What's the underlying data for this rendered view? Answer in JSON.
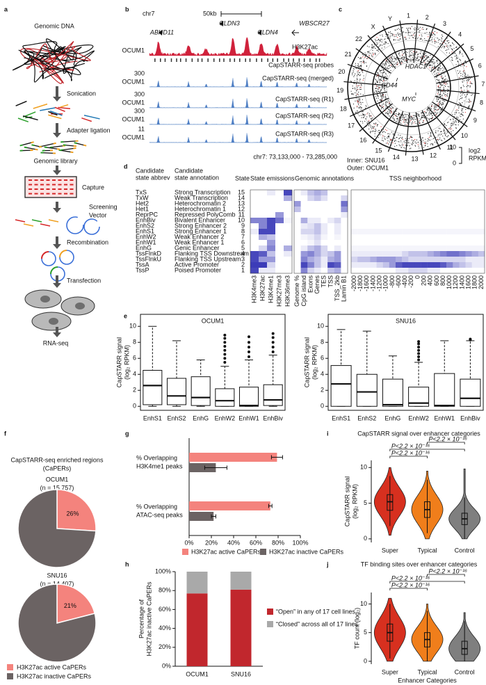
{
  "panel_labels": [
    "a",
    "b",
    "c",
    "d",
    "e",
    "f",
    "g",
    "h",
    "i",
    "j"
  ],
  "workflow": {
    "genomic_dna": "Genomic DNA",
    "sonication": "Sonication",
    "adapter": "Adapter ligation",
    "library": "Genomic library",
    "capture": "Capture",
    "vector": [
      "Screening",
      "Vector"
    ],
    "recombination": "Recombination",
    "transfection": "Transfection",
    "rnaseq": "RNA-seq"
  },
  "browser": {
    "chrom": "chr7",
    "scale": "50kb",
    "genes": [
      "ABHD11",
      "CLDN3",
      "CLDN4",
      "WBSCR27"
    ],
    "cell": "OCUM1",
    "tracks": [
      {
        "name": "H3K27ac"
      },
      {
        "name": "CapSTARR-seq probes"
      },
      {
        "name": "CapSTARR-seq (merged)",
        "scale": 300
      },
      {
        "name": "CapSTARR-seq (R1)",
        "scale": 300
      },
      {
        "name": "CapSTARR-seq (R2)",
        "scale": 300
      },
      {
        "name": "CapSTARR-seq (R3)",
        "scale": 11
      }
    ],
    "coords": "chr7: 73,133,000 - 73,285,000"
  },
  "circos": {
    "chromosomes": [
      "1",
      "2",
      "3",
      "4",
      "5",
      "6",
      "7",
      "8",
      "9",
      "10",
      "11",
      "12",
      "13",
      "14",
      "15",
      "16",
      "17",
      "18",
      "19",
      "20",
      "21",
      "22",
      "X",
      "Y"
    ],
    "genes": [
      "HDAC1",
      "CD44",
      "MYC"
    ],
    "inner": "Inner: SNU16",
    "outer": "Outer: OCUM1",
    "scale_ticks": [
      10,
      0
    ],
    "scale_label": [
      "log2",
      "RPKM"
    ]
  },
  "states": {
    "headers": {
      "abbrev": [
        "Candidate",
        "state abbrev"
      ],
      "annotation": [
        "Candidate",
        "state annotation"
      ],
      "state": "State",
      "emissions": "State emissions",
      "genomic": "Genomic annotations",
      "tss": "TSS neighborhood"
    },
    "abbrev": [
      "TxS",
      "TxW",
      "Het2",
      "Het1",
      "ReprPC",
      "EnhBiv",
      "EnhS2",
      "EnhS1",
      "EnhW2",
      "EnhW1",
      "EnhG",
      "TssFlnkD",
      "TssFlnkU",
      "TssA",
      "TssP"
    ],
    "annotation": [
      "Strong Transcription",
      "Weak Transcription",
      "Heterochromatin 2",
      "Heterochromatin 1",
      "Repressed PolyComb",
      "Bivalent Enhancer",
      "Strong Enhancer 2",
      "Strong Enhancer 1",
      "Weak Enhancer 2",
      "Weak Enhancer 1",
      "Genic Enhancer",
      "Flanking TSS Downstream",
      "Flanking TSS Upstream",
      "Active Promoter",
      "Poised Promoter"
    ],
    "state": [
      15,
      14,
      13,
      12,
      11,
      10,
      9,
      8,
      7,
      6,
      5,
      4,
      3,
      2,
      1
    ],
    "emission_marks": [
      "H3K4me3",
      "H3K27ac",
      "H3K4me1",
      "H3K27me3",
      "H3K36me3"
    ],
    "emissions": [
      [
        0,
        0,
        0.1,
        0,
        0.9
      ],
      [
        0,
        0,
        0,
        0,
        0.4
      ],
      [
        0,
        0,
        0,
        0,
        0
      ],
      [
        0,
        0,
        0,
        0,
        0
      ],
      [
        0,
        0,
        0,
        0.5,
        0
      ],
      [
        0.6,
        0.6,
        0.9,
        0.7,
        0.05
      ],
      [
        0,
        0.6,
        0.9,
        0,
        0
      ],
      [
        0.1,
        0.9,
        0.9,
        0,
        0
      ],
      [
        0,
        0.4,
        0.3,
        0,
        0
      ],
      [
        0,
        0,
        0.5,
        0,
        0
      ],
      [
        0,
        0.2,
        0.6,
        0,
        0.4
      ],
      [
        0.9,
        0.8,
        0.3,
        0,
        0.1
      ],
      [
        0.9,
        0.5,
        0.5,
        0,
        0
      ],
      [
        0.95,
        0.95,
        0.2,
        0,
        0
      ],
      [
        0.9,
        0.1,
        0.1,
        0,
        0
      ]
    ],
    "genomic_cols": [
      "Genome %",
      "CpG island",
      "Exons",
      "Genes",
      "TES",
      "TSS",
      "TSS_2kb",
      "Lamin B1"
    ],
    "genomic": [
      [
        0,
        0.1,
        0.3,
        0.4,
        0.3,
        0,
        0,
        0
      ],
      [
        0,
        0,
        0.2,
        0.3,
        0.15,
        0,
        0,
        0.2
      ],
      [
        0.5,
        0,
        0,
        0,
        0,
        0,
        0,
        0.7
      ],
      [
        0.3,
        0,
        0,
        0,
        0,
        0,
        0,
        0.5
      ],
      [
        0,
        0,
        0,
        0,
        0,
        0,
        0,
        0.1
      ],
      [
        0,
        0.4,
        0.1,
        0.1,
        0,
        0.1,
        0.2,
        0
      ],
      [
        0,
        0.1,
        0.15,
        0.3,
        0.1,
        0,
        0.1,
        0
      ],
      [
        0,
        0.2,
        0.2,
        0.3,
        0.1,
        0,
        0.1,
        0
      ],
      [
        0,
        0.05,
        0.1,
        0.2,
        0.05,
        0,
        0.05,
        0
      ],
      [
        0,
        0,
        0.05,
        0.15,
        0,
        0,
        0,
        0
      ],
      [
        0,
        0.1,
        0.3,
        0.4,
        0.2,
        0,
        0.1,
        0
      ],
      [
        0,
        0.5,
        0.6,
        0.4,
        0.2,
        0.3,
        0.5,
        0
      ],
      [
        0,
        0.6,
        0.4,
        0.3,
        0.1,
        0.4,
        0.5,
        0
      ],
      [
        0,
        0.9,
        0.6,
        0.3,
        0.1,
        0.9,
        0.8,
        0
      ],
      [
        0,
        0.6,
        0.2,
        0.1,
        0,
        0.3,
        0.4,
        0
      ]
    ],
    "tss_positions": [
      -2000,
      -1800,
      -1600,
      -1400,
      -1200,
      -1000,
      -800,
      -600,
      -400,
      -200,
      0,
      200,
      400,
      600,
      800,
      1000,
      1200,
      1400,
      1600,
      1800,
      2000
    ],
    "tss": [
      [
        0,
        0,
        0,
        0,
        0,
        0,
        0,
        0,
        0,
        0,
        0,
        0,
        0,
        0,
        0,
        0,
        0,
        0,
        0,
        0,
        0
      ],
      [
        0,
        0,
        0,
        0,
        0,
        0,
        0,
        0,
        0,
        0,
        0,
        0,
        0,
        0,
        0,
        0,
        0,
        0,
        0,
        0,
        0
      ],
      [
        0,
        0,
        0,
        0,
        0,
        0,
        0,
        0,
        0,
        0,
        0,
        0,
        0,
        0,
        0,
        0,
        0,
        0,
        0,
        0,
        0
      ],
      [
        0,
        0,
        0,
        0,
        0,
        0,
        0,
        0,
        0,
        0,
        0,
        0,
        0,
        0,
        0,
        0,
        0,
        0,
        0,
        0,
        0
      ],
      [
        0,
        0,
        0,
        0,
        0,
        0,
        0,
        0,
        0,
        0,
        0,
        0,
        0,
        0,
        0,
        0,
        0,
        0,
        0,
        0,
        0
      ],
      [
        0,
        0,
        0,
        0,
        0,
        0,
        0,
        0,
        0,
        0,
        0,
        0,
        0,
        0,
        0,
        0,
        0,
        0,
        0,
        0,
        0
      ],
      [
        0,
        0,
        0,
        0,
        0,
        0,
        0,
        0,
        0,
        0,
        0,
        0,
        0,
        0,
        0,
        0,
        0,
        0,
        0,
        0,
        0
      ],
      [
        0.05,
        0.05,
        0.05,
        0.05,
        0.05,
        0.05,
        0.05,
        0.05,
        0.05,
        0.05,
        0.05,
        0.05,
        0.05,
        0.05,
        0.05,
        0.05,
        0.05,
        0.05,
        0.05,
        0.05,
        0.05
      ],
      [
        0,
        0,
        0,
        0,
        0,
        0,
        0,
        0,
        0,
        0,
        0,
        0,
        0,
        0,
        0,
        0,
        0,
        0,
        0,
        0,
        0
      ],
      [
        0,
        0,
        0,
        0,
        0,
        0,
        0,
        0,
        0,
        0,
        0,
        0,
        0,
        0,
        0,
        0,
        0,
        0,
        0,
        0,
        0
      ],
      [
        0.05,
        0.05,
        0.05,
        0.05,
        0.05,
        0.05,
        0.05,
        0.05,
        0.05,
        0.05,
        0.05,
        0.05,
        0.05,
        0.05,
        0.05,
        0.05,
        0.05,
        0.05,
        0.05,
        0.05,
        0.05
      ],
      [
        0.1,
        0.1,
        0.1,
        0.1,
        0.1,
        0.1,
        0.1,
        0.1,
        0.2,
        0.3,
        0.3,
        0.3,
        0.4,
        0.5,
        0.6,
        0.7,
        0.7,
        0.6,
        0.5,
        0.4,
        0.3
      ],
      [
        0.2,
        0.3,
        0.3,
        0.4,
        0.5,
        0.5,
        0.5,
        0.4,
        0.3,
        0.2,
        0.2,
        0.2,
        0.2,
        0.2,
        0.2,
        0.2,
        0.2,
        0.2,
        0.1,
        0.1,
        0.1
      ],
      [
        0.1,
        0.1,
        0.1,
        0.1,
        0.2,
        0.3,
        0.5,
        0.8,
        0.9,
        0.9,
        0.9,
        0.9,
        0.9,
        0.9,
        0.8,
        0.6,
        0.4,
        0.3,
        0.2,
        0.1,
        0.1
      ],
      [
        0,
        0,
        0,
        0,
        0,
        0,
        0,
        0.1,
        0.1,
        0.2,
        0.2,
        0.2,
        0.1,
        0.1,
        0,
        0,
        0,
        0,
        0,
        0,
        0
      ]
    ]
  },
  "chart_data": [
    {
      "type": "box",
      "title": "OCUM1",
      "y_label": [
        "CapSTARR signal",
        "(log₂ RPKM)"
      ],
      "categories": [
        "EnhS1",
        "EnhS2",
        "EnhG",
        "EnhW2",
        "EnhW1",
        "EnhBiv"
      ],
      "low": [
        0,
        0,
        0,
        0,
        0,
        0
      ],
      "q1": [
        0.2,
        0.2,
        0.1,
        0,
        0,
        0.1
      ],
      "median": [
        2.6,
        1.3,
        1.1,
        0.7,
        0.1,
        0.8
      ],
      "q3": [
        4.5,
        3.5,
        3.7,
        2.2,
        2.4,
        2.7
      ],
      "high": [
        10,
        8.2,
        5.8,
        5,
        5.8,
        6.4
      ],
      "outliers": [
        [],
        [],
        [],
        [
          5.5,
          6,
          6.5,
          7,
          7.5,
          8,
          8.5,
          8.9
        ],
        [
          6.2,
          6.8,
          7.4,
          8,
          8.7
        ],
        [
          6.8,
          7.4,
          8,
          8.6,
          9.1
        ]
      ],
      "ylim": [
        -0.5,
        11.5
      ],
      "yticks": [
        0,
        2,
        4,
        6,
        8,
        10
      ],
      "color": "#ffffff"
    },
    {
      "type": "box",
      "title": "SNU16",
      "y_label": [
        "CapSTARR signal",
        "(log₂ RPKM)"
      ],
      "categories": [
        "EnhS1",
        "EnhS2",
        "EnhG",
        "EnhW2",
        "EnhW1",
        "EnhBiv"
      ],
      "low": [
        0,
        0,
        0,
        0,
        0,
        0
      ],
      "q1": [
        0,
        0,
        0,
        0,
        0,
        0
      ],
      "median": [
        2.8,
        1.8,
        0.2,
        0.4,
        0.1,
        1
      ],
      "q3": [
        5.1,
        4,
        3.4,
        2.4,
        4.1,
        3.4
      ],
      "high": [
        9.6,
        9.4,
        6.3,
        5.5,
        8.2,
        8.2
      ],
      "outliers": [
        [],
        [],
        [],
        [
          5.8,
          6.2,
          6.6,
          7,
          7.4,
          7.8,
          8.1
        ],
        [],
        [
          8.3,
          8.4
        ]
      ],
      "ylim": [
        -0.5,
        11.5
      ],
      "yticks": [
        0,
        2,
        4,
        6,
        8,
        10
      ],
      "color": "#ffffff"
    },
    {
      "type": "pie",
      "panel_title": [
        "CapSTARR-seq enriched regions",
        "(CaPERs)"
      ],
      "title": "OCUM1",
      "subtitle": "(n = 15,757)",
      "categories": [
        "H3K27ac active CaPERs",
        "H3K27ac inactive CaPERs"
      ],
      "values": [
        26,
        74
      ],
      "value_labels": [
        "26%",
        null
      ],
      "colors": [
        "#f4837d",
        "#6b6363"
      ]
    },
    {
      "type": "pie",
      "title": "SNU16",
      "subtitle": "(n = 14,407)",
      "categories": [
        "H3K27ac active CaPERs",
        "H3K27ac inactive CaPERs"
      ],
      "values": [
        21,
        79
      ],
      "value_labels": [
        "21%",
        null
      ],
      "colors": [
        "#f4837d",
        "#6b6363"
      ]
    },
    {
      "type": "hbar",
      "categories": [
        [
          "% Overlapping",
          "H3K4me1 peaks"
        ],
        [
          "% Overlapping",
          "ATAC-seq peaks"
        ]
      ],
      "series": [
        {
          "name": "H3K27ac active CaPERs",
          "color": "#f4837d",
          "values": [
            79,
            73
          ],
          "errors": [
            5,
            1.5
          ]
        },
        {
          "name": "H3K27ac inactive CaPERs",
          "color": "#6b6363",
          "values": [
            24,
            22
          ],
          "errors": [
            10,
            2
          ]
        }
      ],
      "xlim": [
        0,
        100
      ],
      "xticks": [
        {
          "value": 0,
          "label": "0%"
        },
        {
          "value": 20,
          "label": "20%"
        },
        {
          "value": 40,
          "label": "40%"
        },
        {
          "value": 60,
          "label": "60%"
        },
        {
          "value": 80,
          "label": "80%"
        },
        {
          "value": 100,
          "label": "100%"
        }
      ]
    },
    {
      "type": "stacked_bar",
      "y_label": [
        "Percentage of",
        "H3K27ac inactive CaPERs"
      ],
      "categories": [
        "OCUM1",
        "SNU16"
      ],
      "series": [
        {
          "name": "“Open” in any of 17 cell lines",
          "color": "#c1272d",
          "values": [
            77,
            81
          ]
        },
        {
          "name": "“Closed” across all of 17 lines",
          "color": "#a9a9a9",
          "values": [
            23,
            19
          ]
        }
      ],
      "ylim": [
        0,
        100
      ],
      "yticks": [
        {
          "value": 0,
          "label": "0%"
        },
        {
          "value": 20,
          "label": "20%"
        },
        {
          "value": 40,
          "label": "40%"
        },
        {
          "value": 60,
          "label": "60%"
        },
        {
          "value": 80,
          "label": "80%"
        },
        {
          "value": 100,
          "label": "100%"
        }
      ]
    },
    {
      "type": "violin",
      "title": "CapSTARR signal over enhancer categories",
      "y_label": [
        "CapSTARR signal",
        "(log₂ RPKM)"
      ],
      "categories": [
        "Super",
        "Typical",
        "Control"
      ],
      "colors": [
        "#d7301f",
        "#f07e1b",
        "#7f7f7f"
      ],
      "min": [
        0.5,
        0,
        0
      ],
      "low": [
        1.8,
        0.8,
        0
      ],
      "q1": [
        4,
        3,
        2
      ],
      "median": [
        5.2,
        4.1,
        2.8
      ],
      "q3": [
        6.2,
        5.2,
        3.6
      ],
      "high": [
        8.8,
        8.3,
        5.8
      ],
      "max": [
        10,
        9.5,
        9.8
      ],
      "comparisons": [
        "P<2.2 × 10⁻¹⁶",
        "P<2.2 × 10⁻¹⁶",
        "P<2.2 × 10⁻¹⁶"
      ],
      "ylim": [
        -0.5,
        11
      ],
      "yticks": [
        0,
        5,
        10
      ]
    },
    {
      "type": "violin",
      "title": "TF binding sites over enhancer categories",
      "y_label": [
        "TF count (log₂)"
      ],
      "x_label": "Enhancer Categories",
      "categories": [
        "Super",
        "Typical",
        "Control"
      ],
      "colors": [
        "#d7301f",
        "#f07e1b",
        "#7f7f7f"
      ],
      "min": [
        0,
        0,
        0
      ],
      "low": [
        0.5,
        0,
        0
      ],
      "q1": [
        3.5,
        2.5,
        1.2
      ],
      "median": [
        5,
        3.8,
        2.2
      ],
      "q3": [
        6.5,
        5,
        3.5
      ],
      "high": [
        10,
        8.8,
        7
      ],
      "max": [
        11,
        10,
        8.5
      ],
      "comparisons": [
        "P<2.2 × 10⁻¹⁶",
        "P<2.2 × 10⁻¹⁶",
        "P<2.2 × 10⁻¹⁶"
      ],
      "ylim": [
        -0.5,
        12
      ],
      "yticks": [
        0,
        5,
        10
      ]
    }
  ]
}
